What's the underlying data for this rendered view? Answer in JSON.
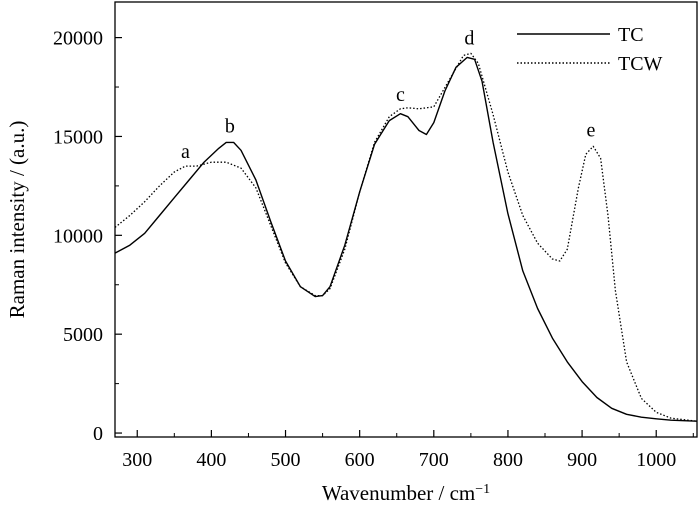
{
  "chart_data": {
    "type": "line",
    "xlabel": "Wavenumber / cm",
    "xlabel_sup": "−1",
    "ylabel": "Raman intensity / (a.u.)",
    "xlim": [
      270,
      1055
    ],
    "ylim": [
      -200,
      21800
    ],
    "xticks": [
      300,
      400,
      500,
      600,
      700,
      800,
      900,
      1000
    ],
    "yticks": [
      0,
      5000,
      10000,
      15000,
      20000
    ],
    "x_minor_step": 50,
    "y_minor_step": 2500,
    "grid": false,
    "legend_position": "top-right",
    "series": [
      {
        "name": "TC",
        "style": "solid",
        "color": "#000000",
        "x": [
          270,
          290,
          310,
          330,
          350,
          370,
          390,
          410,
          420,
          430,
          440,
          460,
          480,
          500,
          520,
          540,
          550,
          560,
          580,
          600,
          620,
          640,
          655,
          665,
          680,
          690,
          700,
          715,
          730,
          745,
          755,
          765,
          780,
          800,
          820,
          840,
          860,
          880,
          900,
          920,
          940,
          960,
          980,
          1000,
          1020,
          1055
        ],
        "y": [
          9100,
          9500,
          10100,
          11000,
          11900,
          12800,
          13700,
          14400,
          14700,
          14700,
          14300,
          12800,
          10700,
          8700,
          7400,
          6900,
          6950,
          7400,
          9500,
          12200,
          14600,
          15800,
          16150,
          16000,
          15300,
          15100,
          15700,
          17300,
          18500,
          19000,
          18900,
          17800,
          14700,
          11100,
          8200,
          6300,
          4800,
          3600,
          2600,
          1800,
          1250,
          950,
          800,
          720,
          650,
          600
        ]
      },
      {
        "name": "TCW",
        "style": "dotted",
        "color": "#000000",
        "x": [
          270,
          290,
          310,
          330,
          350,
          365,
          380,
          400,
          420,
          440,
          460,
          480,
          500,
          520,
          540,
          550,
          560,
          580,
          600,
          620,
          640,
          655,
          665,
          680,
          700,
          720,
          740,
          750,
          760,
          780,
          800,
          820,
          840,
          860,
          870,
          880,
          895,
          905,
          915,
          925,
          935,
          945,
          960,
          980,
          1000,
          1020,
          1055
        ],
        "y": [
          10400,
          11000,
          11700,
          12500,
          13200,
          13500,
          13500,
          13700,
          13700,
          13400,
          12400,
          10500,
          8600,
          7400,
          6950,
          6950,
          7300,
          9300,
          12200,
          14700,
          16000,
          16400,
          16450,
          16400,
          16500,
          17800,
          19100,
          19200,
          18700,
          16100,
          13200,
          11000,
          9600,
          8800,
          8700,
          9300,
          12400,
          14100,
          14500,
          13900,
          11000,
          7200,
          3600,
          1750,
          1050,
          750,
          600
        ]
      }
    ],
    "annotations": [
      {
        "label": "a",
        "x": 365,
        "y": 13500
      },
      {
        "label": "b",
        "x": 425,
        "y": 14800
      },
      {
        "label": "c",
        "x": 655,
        "y": 16400
      },
      {
        "label": "d",
        "x": 748,
        "y": 19250
      },
      {
        "label": "e",
        "x": 912,
        "y": 14600
      }
    ]
  }
}
